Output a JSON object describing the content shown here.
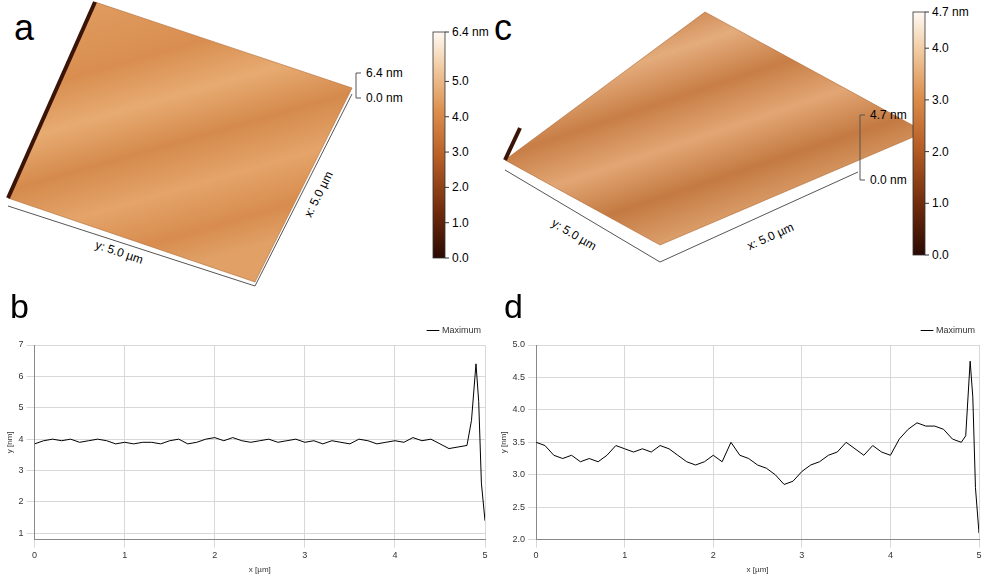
{
  "surfaces": [
    {
      "panel": "a",
      "x_label": "x: 5.0 µm",
      "y_label": "y: 5.0 µm",
      "z_ticks": [
        {
          "value": 6.4,
          "label": "6.4 nm"
        },
        {
          "value": 0,
          "label": "0.0 nm"
        }
      ],
      "colorbar": {
        "range": [
          0,
          6.4
        ],
        "ticks": [
          {
            "value": 0,
            "label": "0.0"
          },
          {
            "value": 1,
            "label": "1.0"
          },
          {
            "value": 2,
            "label": "2.0"
          },
          {
            "value": 3,
            "label": "3.0"
          },
          {
            "value": 4,
            "label": "4.0"
          },
          {
            "value": 5,
            "label": "5.0"
          },
          {
            "value": 6.4,
            "label": "6.4 nm"
          }
        ]
      }
    },
    {
      "panel": "c",
      "x_label": "x: 5.0 µm",
      "y_label": "y: 5.0 µm",
      "z_ticks": [
        {
          "value": 4.7,
          "label": "4.7 nm"
        },
        {
          "value": 0,
          "label": "0.0 nm"
        }
      ],
      "colorbar": {
        "range": [
          0,
          4.7
        ],
        "ticks": [
          {
            "value": 0,
            "label": "0.0"
          },
          {
            "value": 1,
            "label": "1.0"
          },
          {
            "value": 2,
            "label": "2.0"
          },
          {
            "value": 3,
            "label": "3.0"
          },
          {
            "value": 4,
            "label": "4.0"
          },
          {
            "value": 4.7,
            "label": "4.7 nm"
          }
        ]
      }
    }
  ],
  "chart_data": [
    {
      "type": "line",
      "panel": "b",
      "x_label": "x [µm]",
      "y_label": "y [nm]",
      "x": [
        0,
        0.1,
        0.2,
        0.3,
        0.4,
        0.5,
        0.6,
        0.7,
        0.8,
        0.9,
        1,
        1.1,
        1.2,
        1.3,
        1.4,
        1.5,
        1.6,
        1.7,
        1.8,
        1.9,
        2,
        2.1,
        2.2,
        2.3,
        2.4,
        2.5,
        2.6,
        2.7,
        2.8,
        2.9,
        3,
        3.1,
        3.2,
        3.3,
        3.4,
        3.5,
        3.6,
        3.7,
        3.8,
        3.9,
        4,
        4.1,
        4.2,
        4.3,
        4.4,
        4.5,
        4.6,
        4.7,
        4.8,
        4.85,
        4.9,
        4.93,
        4.96,
        5
      ],
      "series": [
        {
          "name": "Maximum",
          "color": "#000000",
          "values": [
            3.85,
            3.95,
            4.0,
            3.95,
            4.0,
            3.9,
            3.95,
            4.0,
            3.95,
            3.85,
            3.9,
            3.85,
            3.9,
            3.9,
            3.85,
            3.95,
            4.0,
            3.85,
            3.9,
            4.0,
            4.05,
            3.95,
            4.05,
            3.95,
            3.9,
            3.95,
            4.0,
            3.9,
            3.95,
            4.0,
            3.9,
            3.95,
            3.85,
            3.95,
            3.9,
            3.85,
            4.0,
            3.95,
            3.85,
            3.9,
            3.95,
            3.9,
            4.05,
            3.95,
            4.0,
            3.85,
            3.7,
            3.75,
            3.8,
            4.6,
            6.4,
            5.2,
            2.6,
            1.4
          ]
        }
      ],
      "xlim": [
        0,
        5
      ],
      "xticks": [
        0,
        1,
        2,
        3,
        4,
        5
      ],
      "ylim": [
        0.8,
        7
      ],
      "yticks": [
        1,
        2,
        3,
        4,
        5,
        6,
        7
      ],
      "grid": true,
      "legend": "top-right"
    },
    {
      "type": "line",
      "panel": "d",
      "x_label": "x [µm]",
      "y_label": "y [nm]",
      "x": [
        0,
        0.1,
        0.2,
        0.3,
        0.4,
        0.5,
        0.6,
        0.7,
        0.8,
        0.9,
        1,
        1.1,
        1.2,
        1.3,
        1.4,
        1.5,
        1.6,
        1.7,
        1.8,
        1.9,
        2,
        2.1,
        2.2,
        2.3,
        2.4,
        2.5,
        2.6,
        2.7,
        2.8,
        2.9,
        3,
        3.1,
        3.2,
        3.3,
        3.4,
        3.5,
        3.6,
        3.7,
        3.8,
        3.9,
        4,
        4.1,
        4.2,
        4.3,
        4.4,
        4.5,
        4.6,
        4.7,
        4.8,
        4.85,
        4.9,
        4.93,
        4.96,
        5
      ],
      "series": [
        {
          "name": "Maximum",
          "color": "#000000",
          "values": [
            3.5,
            3.45,
            3.3,
            3.25,
            3.3,
            3.2,
            3.25,
            3.2,
            3.3,
            3.45,
            3.4,
            3.35,
            3.4,
            3.35,
            3.45,
            3.4,
            3.3,
            3.2,
            3.15,
            3.2,
            3.3,
            3.2,
            3.5,
            3.3,
            3.25,
            3.15,
            3.1,
            3.0,
            2.85,
            2.9,
            3.05,
            3.15,
            3.2,
            3.3,
            3.35,
            3.5,
            3.4,
            3.3,
            3.45,
            3.35,
            3.3,
            3.55,
            3.7,
            3.8,
            3.75,
            3.75,
            3.7,
            3.55,
            3.5,
            3.6,
            4.75,
            4.2,
            2.8,
            2.1
          ]
        }
      ],
      "xlim": [
        0,
        5
      ],
      "xticks": [
        0,
        1,
        2,
        3,
        4,
        5
      ],
      "ylim": [
        2,
        5
      ],
      "yticks": [
        {
          "value": 2,
          "label": "2.0"
        },
        2.5,
        {
          "value": 3,
          "label": "3.0"
        },
        3.5,
        {
          "value": 4,
          "label": "4.0"
        },
        4.5,
        {
          "value": 5,
          "label": "5.0"
        }
      ],
      "grid": true,
      "legend": "top-right"
    }
  ]
}
